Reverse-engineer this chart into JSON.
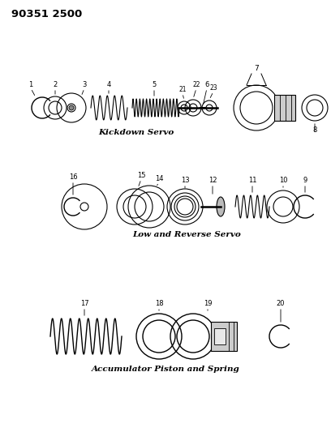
{
  "title_code": "90351 2500",
  "background_color": "#ffffff",
  "text_color": "#000000",
  "section1_label": "Kickdown Servo",
  "section2_label": "Low and Reverse Servo",
  "section3_label": "Accumulator Piston and Spring",
  "fig_width": 4.08,
  "fig_height": 5.33,
  "dpi": 100
}
